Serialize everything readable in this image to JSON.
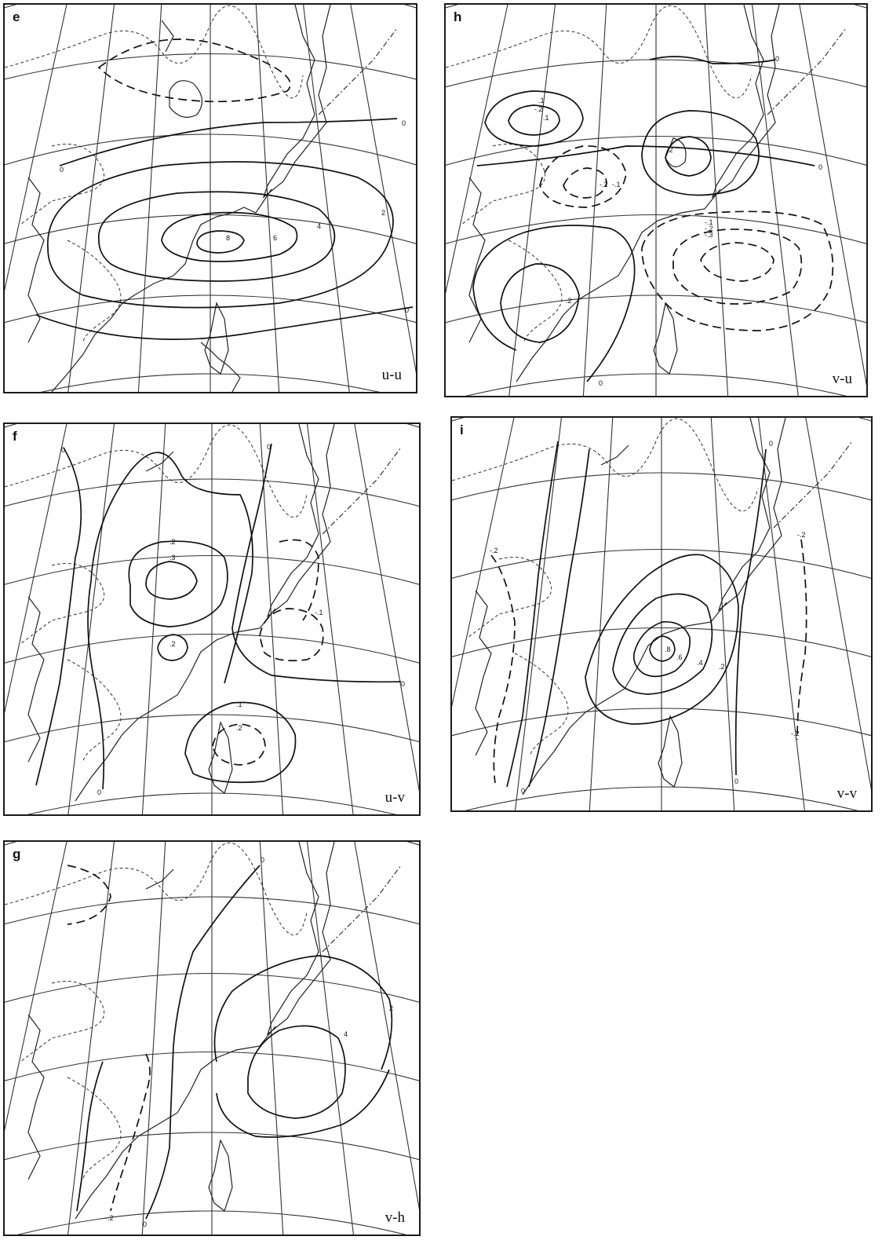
{
  "figure": {
    "panels": [
      {
        "id": "e",
        "letter": "e",
        "tag": "u-u",
        "contours": [
          {
            "label": "0",
            "value": 0
          },
          {
            "label": "0",
            "value": 0
          },
          {
            "label": "0",
            "value": 0
          },
          {
            "label": "2",
            "value": 2
          },
          {
            "label": "4",
            "value": 4
          },
          {
            "label": "6",
            "value": 6
          },
          {
            "label": "8",
            "value": 8
          }
        ]
      },
      {
        "id": "h",
        "letter": "h",
        "tag": "v-u",
        "contours": [
          {
            "label": "0",
            "value": 0
          },
          {
            "label": "0",
            "value": 0
          },
          {
            "label": "0",
            "value": 0
          },
          {
            "label": ".1",
            "value": 0.1
          },
          {
            "label": "-.2",
            "value": -0.2
          },
          {
            "label": ".1",
            "value": 0.1
          },
          {
            "label": ".2",
            "value": 0.2
          },
          {
            "label": "-.2",
            "value": -0.2
          },
          {
            "label": "-.1",
            "value": -0.1
          },
          {
            "label": "-.1",
            "value": -0.1
          },
          {
            "label": "-.2",
            "value": -0.2
          },
          {
            "label": "-.3",
            "value": -0.3
          },
          {
            "label": ".2",
            "value": 0.2
          }
        ]
      },
      {
        "id": "f",
        "letter": "f",
        "tag": "u-v",
        "contours": [
          {
            "label": "0",
            "value": 0
          },
          {
            "label": "0",
            "value": 0
          },
          {
            "label": "0",
            "value": 0
          },
          {
            "label": "0",
            "value": 0
          },
          {
            "label": ".2",
            "value": 0.2
          },
          {
            "label": ".3",
            "value": 0.3
          },
          {
            "label": ".2",
            "value": 0.2
          },
          {
            "label": "-.1",
            "value": -0.1
          },
          {
            "label": ".1",
            "value": 0.1
          },
          {
            "label": ".2",
            "value": 0.2
          }
        ]
      },
      {
        "id": "i",
        "letter": "i",
        "tag": "v-v",
        "contours": [
          {
            "label": "0",
            "value": 0
          },
          {
            "label": "0",
            "value": 0
          },
          {
            "label": "0",
            "value": 0
          },
          {
            "label": "-.2",
            "value": -0.2
          },
          {
            "label": "-.2",
            "value": -0.2
          },
          {
            "label": "-.2",
            "value": -0.2
          },
          {
            "label": ".2",
            "value": 0.2
          },
          {
            "label": ".4",
            "value": 0.4
          },
          {
            "label": ".6",
            "value": 0.6
          },
          {
            "label": ".8",
            "value": 0.8
          }
        ]
      },
      {
        "id": "g",
        "letter": "g",
        "tag": "v-h",
        "contours": [
          {
            "label": "0",
            "value": 0
          },
          {
            "label": "0",
            "value": 0
          },
          {
            "label": "2",
            "value": 2
          },
          {
            "label": "4",
            "value": 4
          },
          {
            "label": "-.2",
            "value": -0.2
          }
        ]
      }
    ]
  }
}
